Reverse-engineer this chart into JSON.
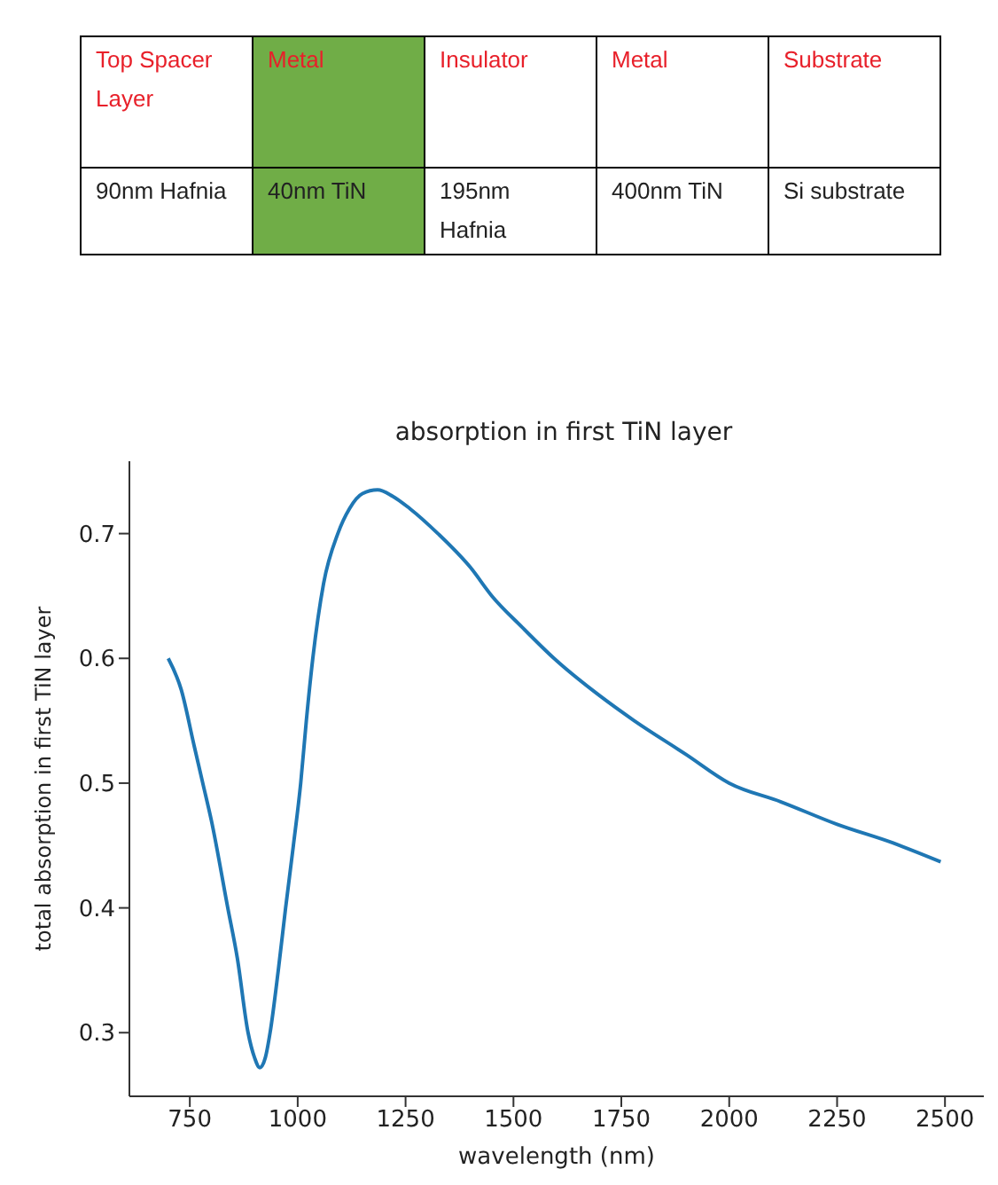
{
  "chart_data": [
    {
      "type": "other",
      "categories": [
        "Top Spacer Layer",
        "Metal",
        "Insulator",
        "Metal",
        "Substrate"
      ],
      "cell_labels": [
        [
          "90nm Hafnia",
          "40nm TiN",
          "195nm Hafnia",
          "400nm TiN",
          "Si substrate"
        ]
      ],
      "colors": [
        null,
        "#70ad47",
        null,
        null,
        null
      ]
    },
    {
      "type": "line",
      "title": "absorption in first TiN layer",
      "xlabel": "wavelength (nm)",
      "ylabel": "total absorption in first TiN layer",
      "x": [
        700,
        730,
        760,
        780,
        800,
        838,
        860,
        885,
        900,
        912,
        925,
        936,
        955,
        972,
        990,
        1007,
        1020,
        1035,
        1060,
        1093,
        1120,
        1150,
        1185,
        1220,
        1260,
        1325,
        1400,
        1450,
        1520,
        1594,
        1700,
        1780,
        1900,
        2000,
        2120,
        2250,
        2380,
        2490
      ],
      "series": [
        {
          "color": "#1f77b4",
          "values": [
            0.6,
            0.575,
            0.53,
            0.5,
            0.47,
            0.4,
            0.36,
            0.3,
            0.28,
            0.272,
            0.28,
            0.3,
            0.35,
            0.4,
            0.45,
            0.5,
            0.55,
            0.6,
            0.66,
            0.7,
            0.72,
            0.732,
            0.735,
            0.73,
            0.72,
            0.7,
            0.673,
            0.65,
            0.625,
            0.6,
            0.57,
            0.55,
            0.523,
            0.5,
            0.485,
            0.467,
            0.452,
            0.437
          ]
        }
      ],
      "xlim": [
        610,
        2590
      ],
      "xticks": [
        750,
        1000,
        1250,
        1500,
        1750,
        2000,
        2250,
        2500
      ],
      "ylim": [
        0.249,
        0.758
      ],
      "yticks": [
        0.3,
        0.4,
        0.5,
        0.6,
        0.7
      ],
      "grid": false,
      "legend": false,
      "marker": "none",
      "line_style": "solid"
    }
  ]
}
